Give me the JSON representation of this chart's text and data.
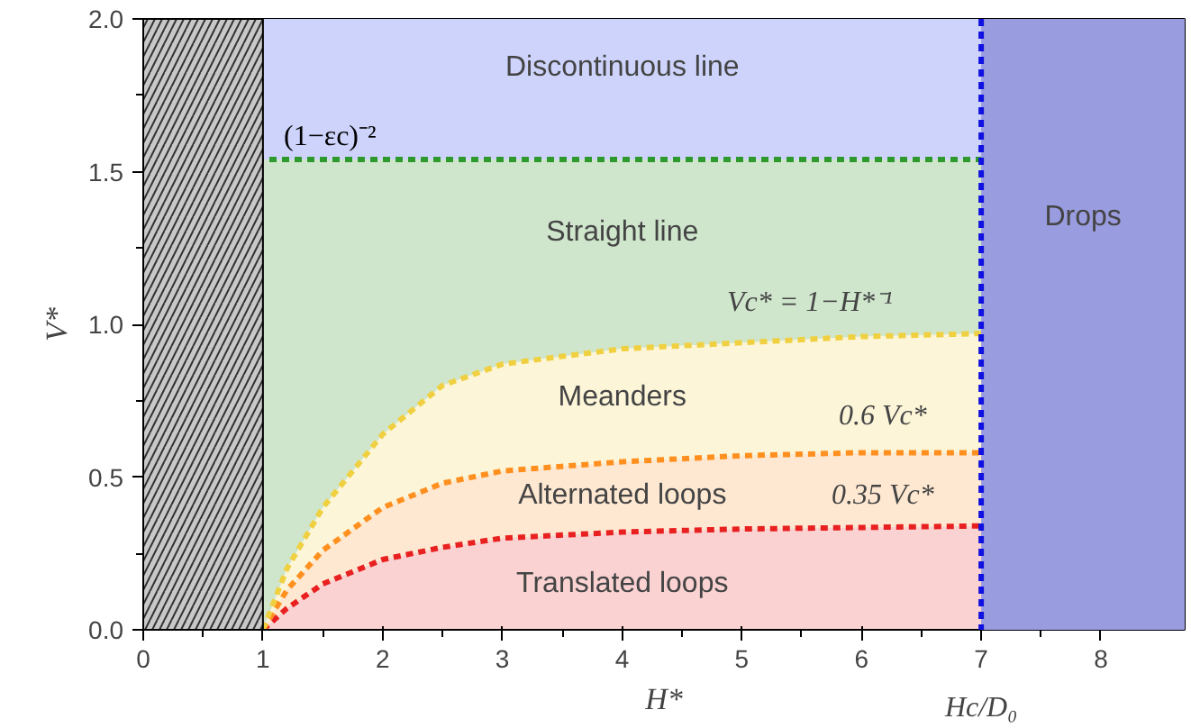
{
  "chart_data": {
    "type": "line",
    "xlabel": "H*",
    "ylabel": "V*",
    "xlim": [
      0,
      8.7
    ],
    "ylim": [
      0,
      2.0
    ],
    "xticks": [
      0,
      1,
      2,
      3,
      4,
      5,
      6,
      7,
      8
    ],
    "yticks": [
      {
        "value": 0,
        "label": "0.0"
      },
      0.5,
      {
        "value": 1,
        "label": "1.0"
      },
      1.5,
      {
        "value": 2,
        "label": "2.0"
      }
    ],
    "line_style": "dashed",
    "marker": "none",
    "bands": [
      {
        "axis": "y",
        "from": 0,
        "to": 1.54,
        "color": "#cfe6cc"
      },
      {
        "axis": "y",
        "from": 1.54,
        "to": 2.0,
        "color": "#cdd3fb"
      },
      {
        "axis": "x",
        "from": 0,
        "to": 1,
        "color": "#c8c8c8"
      },
      {
        "axis": "x",
        "from": 7,
        "to": 8.7,
        "color": "#9a9ce0",
        "label": "Drops"
      }
    ],
    "ref_lines": [
      {
        "axis": "y",
        "value": 1.54,
        "label": "(1−εc)⁻²",
        "color": "#2e9a2e"
      },
      {
        "axis": "x",
        "value": 7,
        "label": "Hc/D₀",
        "color": "#1010e0"
      }
    ],
    "series": [
      {
        "x": [
          1,
          1.2,
          1.5,
          2,
          2.5,
          3,
          4,
          5,
          6,
          7
        ],
        "values": [
          0,
          0.07,
          0.15,
          0.23,
          0.27,
          0.3,
          0.32,
          0.33,
          0.335,
          0.34
        ],
        "lower": [
          0,
          0,
          0,
          0,
          0,
          0,
          0,
          0,
          0,
          0
        ],
        "upper": [
          0,
          0.07,
          0.15,
          0.23,
          0.27,
          0.3,
          0.32,
          0.33,
          0.335,
          0.34
        ],
        "color": "#e82020"
      },
      {
        "x": [
          1,
          1.2,
          1.5,
          2,
          2.5,
          3,
          4,
          5,
          6,
          7
        ],
        "values": [
          0,
          0.13,
          0.26,
          0.4,
          0.48,
          0.52,
          0.55,
          0.57,
          0.58,
          0.58
        ],
        "lower": [
          0,
          0.07,
          0.15,
          0.23,
          0.27,
          0.3,
          0.32,
          0.33,
          0.335,
          0.34
        ],
        "upper": [
          0,
          0.13,
          0.26,
          0.4,
          0.48,
          0.52,
          0.55,
          0.57,
          0.58,
          0.58
        ],
        "color": "#ff9020"
      },
      {
        "x": [
          1,
          1.2,
          1.5,
          2,
          2.5,
          3,
          4,
          5,
          6,
          7
        ],
        "values": [
          0,
          0.2,
          0.4,
          0.64,
          0.8,
          0.87,
          0.92,
          0.94,
          0.96,
          0.97
        ],
        "lower": [
          0,
          0.13,
          0.26,
          0.4,
          0.48,
          0.52,
          0.55,
          0.57,
          0.58,
          0.58
        ],
        "upper": [
          0,
          0.2,
          0.4,
          0.64,
          0.8,
          0.87,
          0.92,
          0.94,
          0.96,
          0.97
        ],
        "color": "#f0d040"
      }
    ],
    "annotations": [
      "Discontinuous line",
      "Straight line",
      "Meanders",
      "Alternated loops",
      "Translated loops",
      "Vc* = 1−H*⁻¹",
      "0.6 Vc*",
      "0.35 Vc*"
    ]
  }
}
